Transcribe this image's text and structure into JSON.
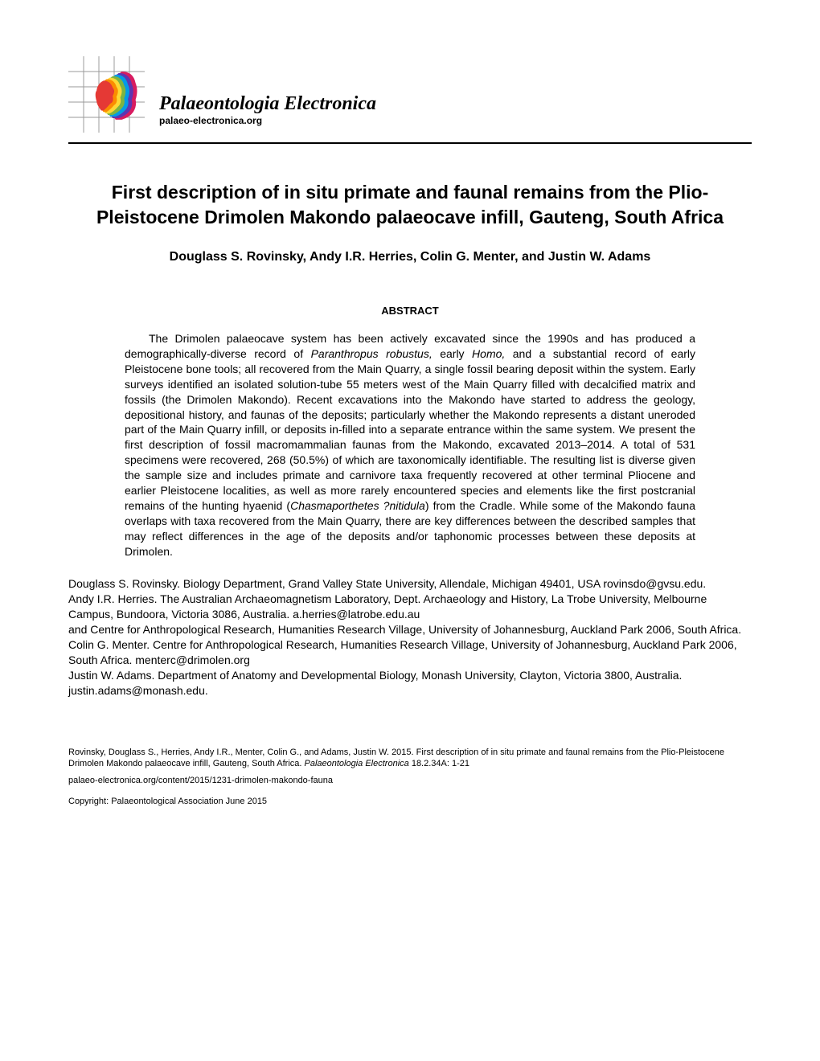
{
  "journal": {
    "title": "Palaeontologia Electronica",
    "url": "palaeo-electronica.org"
  },
  "logo": {
    "grid_color": "#888888",
    "colors": [
      "#e53935",
      "#fb8c00",
      "#fdd835",
      "#7cb342",
      "#039be5",
      "#5e35b1",
      "#d81b60"
    ],
    "bg_color": "#ffffff"
  },
  "article": {
    "title": "First description of in situ primate and faunal remains from the Plio-Pleistocene Drimolen Makondo palaeocave infill, Gauteng, South Africa",
    "authors": "Douglass S. Rovinsky, Andy I.R. Herries, Colin G. Menter, and Justin W. Adams",
    "abstract_heading": "ABSTRACT",
    "abstract": "The Drimolen palaeocave system has been actively excavated since the 1990s and has produced a demographically-diverse record of <em>Paranthropus robustus,</em> early <em>Homo,</em> and a substantial record of early Pleistocene bone tools; all recovered from the Main Quarry, a single fossil bearing deposit within the system. Early surveys identified an isolated solution-tube 55 meters west of the Main Quarry filled with decalcified matrix and fossils (the Drimolen Makondo). Recent excavations into the Makondo have started to address the geology, depositional history, and faunas of the deposits; particularly whether the Makondo represents a distant uneroded part of the Main Quarry infill, or deposits in-filled into a separate entrance within the same system. We present the first description of fossil macromammalian faunas from the Makondo, excavated 2013–2014. A total of 531 specimens were recovered, 268 (50.5%) of which are taxonomically identifiable. The resulting list is diverse given the sample size and includes primate and carnivore taxa frequently recovered at other terminal Pliocene and earlier Pleistocene localities, as well as more rarely encountered species and elements like the first postcranial remains of the hunting hyaenid (<em>Chasmaporthetes ?nitidula</em>) from the Cradle. While some of the Makondo fauna overlaps with taxa recovered from the Main Quarry, there are key differences between the described samples that may reflect differences in the age of the deposits and/or taphonomic processes between these deposits at Drimolen."
  },
  "affiliations": {
    "a1": "Douglass S. Rovinsky. Biology Department, Grand Valley State University, Allendale, Michigan 49401, USA rovinsdo@gvsu.edu.",
    "a2": "Andy I.R. Herries. The Australian Archaeomagnetism Laboratory, Dept. Archaeology and History, La Trobe University, Melbourne Campus, Bundoora, Victoria 3086, Australia. a.herries@latrobe.edu.au",
    "a2b": "and Centre for Anthropological Research, Humanities Research Village, University of Johannesburg, Auckland Park 2006, South Africa.",
    "a3": "Colin G. Menter. Centre for Anthropological Research, Humanities Research Village, University of Johannesburg, Auckland Park 2006, South Africa. menterc@drimolen.org",
    "a4": "Justin W. Adams. Department of Anatomy and Developmental Biology, Monash University, Clayton, Victoria 3800, Australia. justin.adams@monash.edu."
  },
  "footer": {
    "citation": "Rovinsky, Douglass S., Herries, Andy I.R., Menter, Colin G., and Adams, Justin W. 2015. First description of in situ primate and faunal remains from the Plio-Pleistocene Drimolen Makondo palaeocave infill, Gauteng, South Africa. <em>Palaeontologia Electronica</em> 18.2.34A: 1-21",
    "article_url": "palaeo-electronica.org/content/2015/1231-drimolen-makondo-fauna",
    "copyright": "Copyright: Palaeontological Association June 2015"
  }
}
